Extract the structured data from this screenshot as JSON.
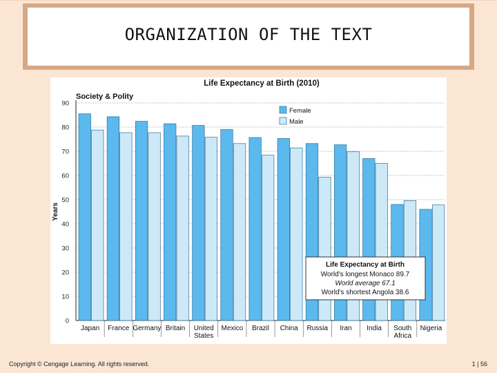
{
  "slide": {
    "title": "ORGANIZATION OF THE TEXT",
    "copyright": "Copyright © Cengage Learning. All rights reserved.",
    "page": "1 | 56"
  },
  "chart_data": {
    "type": "bar",
    "title": "Life Expectancy at Birth (2010)",
    "subtitle": "Society & Polity",
    "ylabel": "Years",
    "xlabel": "",
    "ylim": [
      0,
      90
    ],
    "yticks": [
      0,
      10,
      20,
      30,
      40,
      50,
      60,
      70,
      80,
      90
    ],
    "grid": true,
    "categories": [
      "Japan",
      "France",
      "Germany",
      "Britain",
      "United\nStates",
      "Mexico",
      "Brazil",
      "China",
      "Russia",
      "Iran",
      "India",
      "South\nAfrica",
      "Nigeria"
    ],
    "category_lines": [
      [
        "Japan"
      ],
      [
        "France"
      ],
      [
        "Germany"
      ],
      [
        "Britain"
      ],
      [
        "United",
        "States"
      ],
      [
        "Mexico"
      ],
      [
        "Brazil"
      ],
      [
        "China"
      ],
      [
        "Russia"
      ],
      [
        "Iran"
      ],
      [
        "India"
      ],
      [
        "South",
        "Africa"
      ],
      [
        "Nigeria"
      ]
    ],
    "series": [
      {
        "name": "Female",
        "color": "#5bb9ee",
        "values": [
          85.5,
          84.3,
          82.4,
          81.4,
          80.7,
          79.0,
          75.7,
          75.3,
          73.2,
          72.7,
          67.0,
          48.0,
          46.0
        ]
      },
      {
        "name": "Male",
        "color": "#cde9f8",
        "values": [
          78.8,
          77.7,
          77.7,
          76.3,
          75.8,
          73.2,
          68.4,
          71.4,
          59.3,
          69.8,
          65.0,
          49.6,
          47.8
        ]
      }
    ],
    "legend_position": "top-right",
    "annotation": {
      "title": "Life Expectancy at Birth",
      "lines": [
        "World's longest Monaco 89.7",
        "World average 67.1",
        "World's shortest Angola 38.6"
      ]
    }
  }
}
